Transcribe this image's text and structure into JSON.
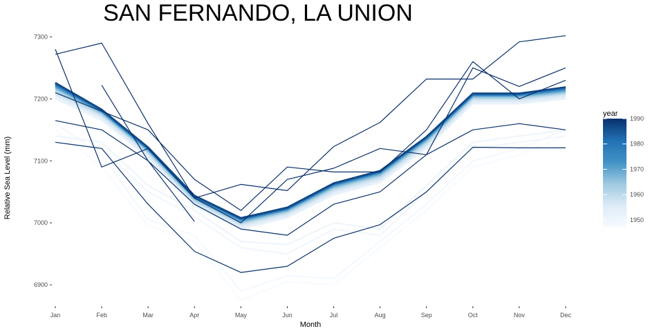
{
  "chart_data": {
    "type": "line",
    "title": "SAN FERNANDO, LA UNION",
    "xlabel": "Month",
    "ylabel": "Relative Sea Level (mm)",
    "categories": [
      "Jan",
      "Feb",
      "Mar",
      "Apr",
      "May",
      "Jun",
      "Jul",
      "Aug",
      "Sep",
      "Oct",
      "Nov",
      "Dec"
    ],
    "ylim": [
      6870,
      7315
    ],
    "yticks": [
      6900,
      7000,
      7100,
      7200,
      7300
    ],
    "grid": false,
    "legend": {
      "title": "year",
      "position": "right",
      "ticks": [
        1950,
        1960,
        1970,
        1980,
        1990
      ],
      "range": [
        1947,
        1990
      ],
      "colors": [
        "#f7fbff",
        "#deebf7",
        "#9ecae1",
        "#4292c6",
        "#2171b5",
        "#08306b"
      ]
    },
    "series": [
      {
        "year": 1947,
        "values": [
          7150,
          7090,
          6995,
          6970,
          6875,
          6905,
          6900,
          6960,
          7020,
          7090,
          7110,
          7140
        ]
      },
      {
        "year": 1948,
        "values": [
          7160,
          7110,
          7005,
          6980,
          6890,
          6915,
          6910,
          6970,
          7030,
          7100,
          7120,
          7150
        ]
      },
      {
        "year": 1949,
        "values": [
          7130,
          7120,
          7050,
          7010,
          6960,
          6950,
          6990,
          6980,
          7050,
          7120,
          7130,
          7140
        ]
      },
      {
        "year": 1950,
        "values": [
          7140,
          7130,
          7060,
          7020,
          6970,
          6965,
          7000,
          6990,
          7060,
          7130,
          7140,
          7150
        ]
      },
      {
        "year": 1951,
        "values": [
          7200,
          7165,
          7105,
          7027,
          6990,
          7008,
          7045,
          7065,
          7120,
          7192,
          7192,
          7200
        ]
      },
      {
        "year": 1953,
        "values": [
          7203,
          7168,
          7107,
          7029,
          6992,
          7010,
          7047,
          7067,
          7122,
          7194,
          7194,
          7202
        ]
      },
      {
        "year": 1955,
        "values": [
          7206,
          7170,
          7109,
          7031,
          6994,
          7012,
          7049,
          7069,
          7124,
          7196,
          7196,
          7204
        ]
      },
      {
        "year": 1957,
        "values": [
          7208,
          7172,
          7111,
          7033,
          6996,
          7014,
          7051,
          7071,
          7126,
          7198,
          7198,
          7206
        ]
      },
      {
        "year": 1959,
        "values": [
          7211,
          7174,
          7113,
          7035,
          6998,
          7016,
          7053,
          7073,
          7128,
          7200,
          7200,
          7208
        ]
      },
      {
        "year": 1961,
        "values": [
          7213,
          7175,
          7114,
          7036,
          6999,
          7017,
          7055,
          7075,
          7130,
          7201,
          7201,
          7209
        ]
      },
      {
        "year": 1963,
        "values": [
          7215,
          7176,
          7115,
          7037,
          7000,
          7018,
          7056,
          7076,
          7131,
          7202,
          7202,
          7210
        ]
      },
      {
        "year": 1965,
        "values": [
          7217,
          7177,
          7116,
          7038,
          7001,
          7019,
          7057,
          7077,
          7132,
          7203,
          7203,
          7211
        ]
      },
      {
        "year": 1967,
        "values": [
          7218,
          7178,
          7117,
          7039,
          7002,
          7020,
          7058,
          7078,
          7133,
          7204,
          7204,
          7212
        ]
      },
      {
        "year": 1969,
        "values": [
          7219,
          7179,
          7118,
          7040,
          7003,
          7021,
          7059,
          7079,
          7134,
          7205,
          7205,
          7213
        ]
      },
      {
        "year": 1971,
        "values": [
          7220,
          7179,
          7118,
          7040,
          7004,
          7021,
          7060,
          7080,
          7135,
          7205,
          7205,
          7214
        ]
      },
      {
        "year": 1973,
        "values": [
          7221,
          7180,
          7119,
          7041,
          7005,
          7022,
          7061,
          7081,
          7136,
          7206,
          7206,
          7215
        ]
      },
      {
        "year": 1975,
        "values": [
          7222,
          7180,
          7119,
          7041,
          7005,
          7022,
          7061,
          7081,
          7136,
          7206,
          7206,
          7216
        ]
      },
      {
        "year": 1977,
        "values": [
          7223,
          7181,
          7120,
          7042,
          7006,
          7023,
          7062,
          7082,
          7137,
          7207,
          7207,
          7217
        ]
      },
      {
        "year": 1979,
        "values": [
          7224,
          7181,
          7120,
          7042,
          7006,
          7023,
          7062,
          7082,
          7137,
          7207,
          7207,
          7217
        ]
      },
      {
        "year": 1981,
        "values": [
          7224,
          7182,
          7121,
          7043,
          7007,
          7024,
          7063,
          7083,
          7138,
          7208,
          7208,
          7218
        ]
      },
      {
        "year": 1983,
        "values": [
          7225,
          7182,
          7121,
          7043,
          7007,
          7024,
          7063,
          7083,
          7138,
          7208,
          7208,
          7218
        ]
      },
      {
        "year": 1985,
        "values": [
          7225,
          7182,
          7121,
          7043,
          7007,
          7024,
          7063,
          7083,
          7138,
          7208,
          7208,
          7219
        ]
      },
      {
        "year": 1986,
        "values": [
          7226,
          7183,
          7122,
          7044,
          7008,
          7025,
          7064,
          7084,
          7139,
          7209,
          7209,
          7219
        ]
      },
      {
        "year": 1987,
        "values": [
          7226,
          7183,
          7122,
          7044,
          7008,
          7025,
          7064,
          7084,
          7139,
          7209,
          7209,
          7219
        ]
      },
      {
        "year": 1990,
        "values": [
          7130,
          7120,
          7030,
          6954,
          6920,
          6930,
          6975,
          6997,
          7050,
          7122,
          7121,
          7121
        ]
      },
      {
        "year": 1990,
        "values": [
          7165,
          7150,
          7100,
          7030,
          6990,
          6980,
          7030,
          7050,
          7110,
          7150,
          7160,
          7150
        ]
      },
      {
        "year": 1990,
        "values": [
          7210,
          7180,
          7150,
          7070,
          7020,
          7090,
          7082,
          7082,
          7150,
          7260,
          7200,
          7230
        ]
      },
      {
        "year": 1990,
        "values": [
          7272,
          7290,
          7160,
          7040,
          7062,
          7052,
          7123,
          7162,
          7232,
          7232,
          7292,
          7302
        ]
      },
      {
        "year": 1990,
        "values": [
          7280,
          7090,
          7120,
          7040,
          7000,
          7070,
          7088,
          7120,
          7110,
          7250,
          7220,
          7250
        ]
      },
      {
        "year": 1990,
        "values": [
          null,
          7222,
          7100,
          7002,
          null,
          null,
          null,
          null,
          null,
          null,
          null,
          null
        ]
      }
    ]
  }
}
